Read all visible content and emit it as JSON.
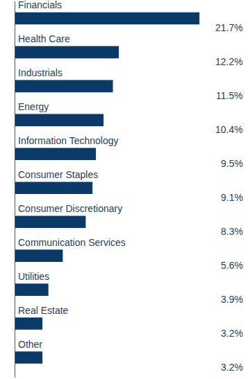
{
  "chart_data": {
    "type": "bar",
    "orientation": "horizontal",
    "categories": [
      "Financials",
      "Health Care",
      "Industrials",
      "Energy",
      "Information Technology",
      "Consumer Staples",
      "Consumer Discretionary",
      "Communication Services",
      "Utilities",
      "Real Estate",
      "Other"
    ],
    "values": [
      21.7,
      12.2,
      11.5,
      10.4,
      9.5,
      9.1,
      8.3,
      5.6,
      3.9,
      3.2,
      3.2
    ],
    "value_labels": [
      "21.7%",
      "12.2%",
      "11.5%",
      "10.4%",
      "9.5%",
      "9.1%",
      "8.3%",
      "5.6%",
      "3.9%",
      "3.2%",
      "3.2%"
    ],
    "data_labels": true,
    "color": "#0b3a68",
    "xlim": [
      0,
      27
    ],
    "grid": false,
    "tick_labels": false
  }
}
